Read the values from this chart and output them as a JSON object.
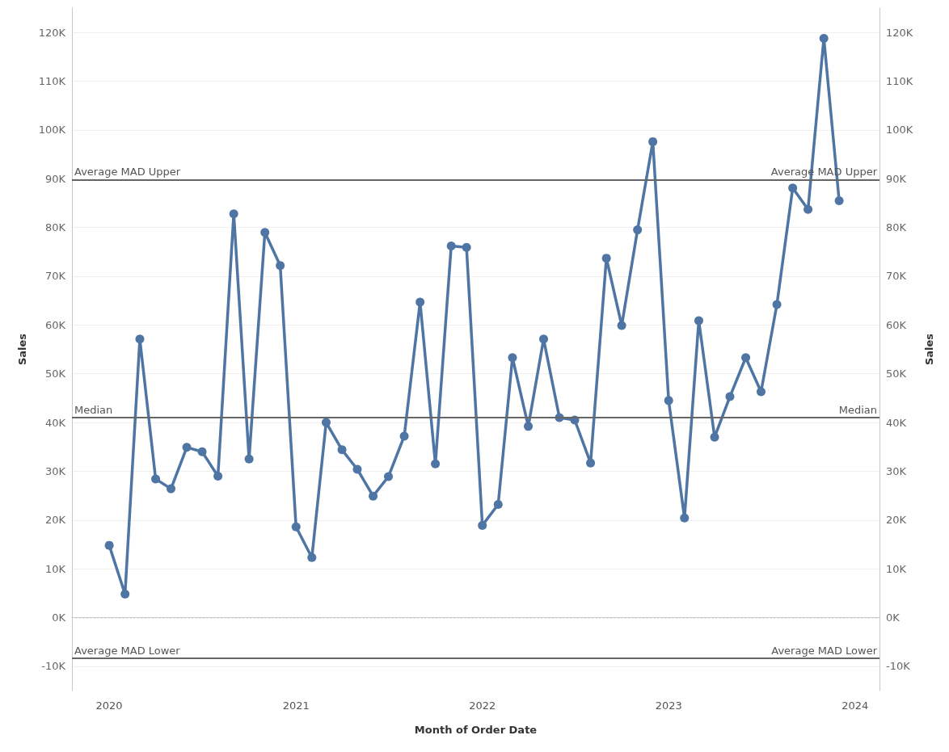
{
  "chart_data": {
    "type": "line",
    "xlabel": "Month of Order Date",
    "ylabel": "Sales",
    "y2label": "Sales",
    "x": [
      "2020-01",
      "2020-02",
      "2020-03",
      "2020-04",
      "2020-05",
      "2020-06",
      "2020-07",
      "2020-08",
      "2020-09",
      "2020-10",
      "2020-11",
      "2020-12",
      "2021-01",
      "2021-02",
      "2021-03",
      "2021-04",
      "2021-05",
      "2021-06",
      "2021-07",
      "2021-08",
      "2021-09",
      "2021-10",
      "2021-11",
      "2021-12",
      "2022-01",
      "2022-02",
      "2022-03",
      "2022-04",
      "2022-05",
      "2022-06",
      "2022-07",
      "2022-08",
      "2022-09",
      "2022-10",
      "2022-11",
      "2022-12",
      "2023-01",
      "2023-02",
      "2023-03",
      "2023-04",
      "2023-05",
      "2023-06",
      "2023-07",
      "2023-08",
      "2023-09",
      "2023-10",
      "2023-11",
      "2023-12"
    ],
    "series": [
      {
        "color": "#4e75a3",
        "values": [
          14800,
          4800,
          57100,
          28400,
          26400,
          34900,
          34000,
          29000,
          82800,
          32500,
          79000,
          72200,
          18600,
          12300,
          40000,
          34400,
          30400,
          24900,
          28900,
          37200,
          64700,
          31500,
          76200,
          75900,
          18900,
          23200,
          53300,
          39200,
          57100,
          41000,
          40500,
          31700,
          73700,
          59900,
          79500,
          97600,
          44500,
          20400,
          60900,
          37000,
          45300,
          53300,
          46300,
          64200,
          88100,
          83700,
          118800,
          85500
        ]
      }
    ],
    "xlim": [
      "2019-10-20",
      "2024-02-18"
    ],
    "xticks": [
      "2020",
      "2021",
      "2022",
      "2023",
      "2024"
    ],
    "ylim": [
      -15000,
      125000
    ],
    "yticks": [
      {
        "value": -10000,
        "label": "-10K"
      },
      {
        "value": 0,
        "label": "0K"
      },
      {
        "value": 10000,
        "label": "10K"
      },
      {
        "value": 20000,
        "label": "20K"
      },
      {
        "value": 30000,
        "label": "30K"
      },
      {
        "value": 40000,
        "label": "40K"
      },
      {
        "value": 50000,
        "label": "50K"
      },
      {
        "value": 60000,
        "label": "60K"
      },
      {
        "value": 70000,
        "label": "70K"
      },
      {
        "value": 80000,
        "label": "80K"
      },
      {
        "value": 90000,
        "label": "90K"
      },
      {
        "value": 100000,
        "label": "100K"
      },
      {
        "value": 110000,
        "label": "110K"
      },
      {
        "value": 120000,
        "label": "120K"
      }
    ],
    "y2lim": [
      -15000,
      125000
    ],
    "y2ticks": [
      {
        "value": -10000,
        "label": "-10K"
      },
      {
        "value": 0,
        "label": "0K"
      },
      {
        "value": 10000,
        "label": "10K"
      },
      {
        "value": 20000,
        "label": "20K"
      },
      {
        "value": 30000,
        "label": "30K"
      },
      {
        "value": 40000,
        "label": "40K"
      },
      {
        "value": 50000,
        "label": "50K"
      },
      {
        "value": 60000,
        "label": "60K"
      },
      {
        "value": 70000,
        "label": "70K"
      },
      {
        "value": 80000,
        "label": "80K"
      },
      {
        "value": 90000,
        "label": "90K"
      },
      {
        "value": 100000,
        "label": "100K"
      },
      {
        "value": 110000,
        "label": "110K"
      },
      {
        "value": 120000,
        "label": "120K"
      }
    ],
    "ref_lines": [
      {
        "axis": "y",
        "value": 89800,
        "label": "Average MAD Upper",
        "color": "#666666",
        "line_style": "solid"
      },
      {
        "axis": "y",
        "value": 41000,
        "label": "Median",
        "color": "#666666",
        "line_style": "solid"
      },
      {
        "axis": "y",
        "value": -8300,
        "label": "Average MAD Lower",
        "color": "#666666",
        "line_style": "solid"
      },
      {
        "axis": "y",
        "value": 0,
        "color": "#cccccc",
        "line_style": "dotted"
      }
    ],
    "grid": "y",
    "marker": "circle",
    "line_style": "solid"
  }
}
